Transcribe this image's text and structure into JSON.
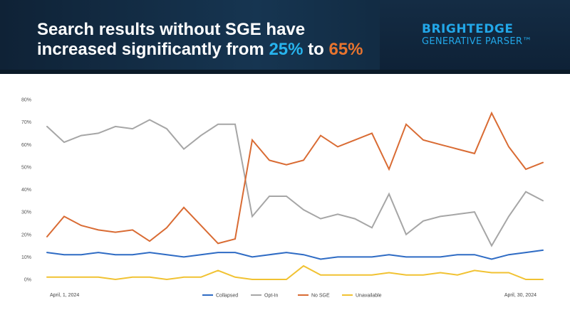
{
  "banner": {
    "headline_line1": "Search results without SGE have",
    "headline_line2_prefix": "increased significantly from ",
    "headline_pct_from": "25%",
    "headline_to": " to ",
    "headline_pct_to": "65%",
    "logo_main": "BRIGHTEDGE",
    "logo_sub": "GENERATIVE PARSER™"
  },
  "colors": {
    "banner_bg": "#163551",
    "accent_blue": "#27b4ee",
    "accent_orange": "#e8742f"
  },
  "chart_data": {
    "type": "line",
    "title": "",
    "xlabel": "",
    "ylabel": "",
    "ylim": [
      0,
      80
    ],
    "yticks": [
      "0%",
      "10%",
      "20%",
      "30%",
      "40%",
      "50%",
      "60%",
      "70%",
      "80%"
    ],
    "grid": false,
    "legend_position": "bottom",
    "x_start_label": "April, 1, 2024",
    "x_end_label": "April, 30, 2024",
    "x": [
      "2024-04-01",
      "2024-04-02",
      "2024-04-03",
      "2024-04-04",
      "2024-04-05",
      "2024-04-06",
      "2024-04-07",
      "2024-04-08",
      "2024-04-09",
      "2024-04-10",
      "2024-04-11",
      "2024-04-12",
      "2024-04-13",
      "2024-04-14",
      "2024-04-15",
      "2024-04-16",
      "2024-04-17",
      "2024-04-18",
      "2024-04-19",
      "2024-04-20",
      "2024-04-21",
      "2024-04-22",
      "2024-04-23",
      "2024-04-24",
      "2024-04-25",
      "2024-04-26",
      "2024-04-27",
      "2024-04-28",
      "2024-04-29",
      "2024-04-30"
    ],
    "series": [
      {
        "name": "Collapsed",
        "color": "#2e6bc4",
        "values": [
          12,
          11,
          11,
          12,
          11,
          11,
          12,
          11,
          10,
          11,
          12,
          12,
          10,
          11,
          12,
          11,
          9,
          10,
          10,
          10,
          11,
          10,
          10,
          10,
          11,
          11,
          9,
          11,
          12,
          13
        ]
      },
      {
        "name": "Opt-In",
        "color": "#a6a6a6",
        "values": [
          68,
          61,
          64,
          65,
          68,
          67,
          71,
          67,
          58,
          64,
          69,
          69,
          28,
          37,
          37,
          31,
          27,
          29,
          27,
          23,
          38,
          20,
          26,
          28,
          29,
          30,
          15,
          28,
          39,
          35
        ]
      },
      {
        "name": "No SGE",
        "color": "#d96b33",
        "values": [
          19,
          28,
          24,
          22,
          21,
          22,
          17,
          23,
          32,
          24,
          16,
          18,
          62,
          53,
          51,
          53,
          64,
          59,
          62,
          65,
          49,
          69,
          62,
          60,
          58,
          56,
          74,
          59,
          49,
          52
        ]
      },
      {
        "name": "Unavailable",
        "color": "#f1c232",
        "values": [
          1,
          1,
          1,
          1,
          0,
          1,
          1,
          0,
          1,
          1,
          4,
          1,
          0,
          0,
          0,
          6,
          2,
          2,
          2,
          2,
          3,
          2,
          2,
          3,
          2,
          4,
          3,
          3,
          0,
          0
        ]
      }
    ]
  }
}
